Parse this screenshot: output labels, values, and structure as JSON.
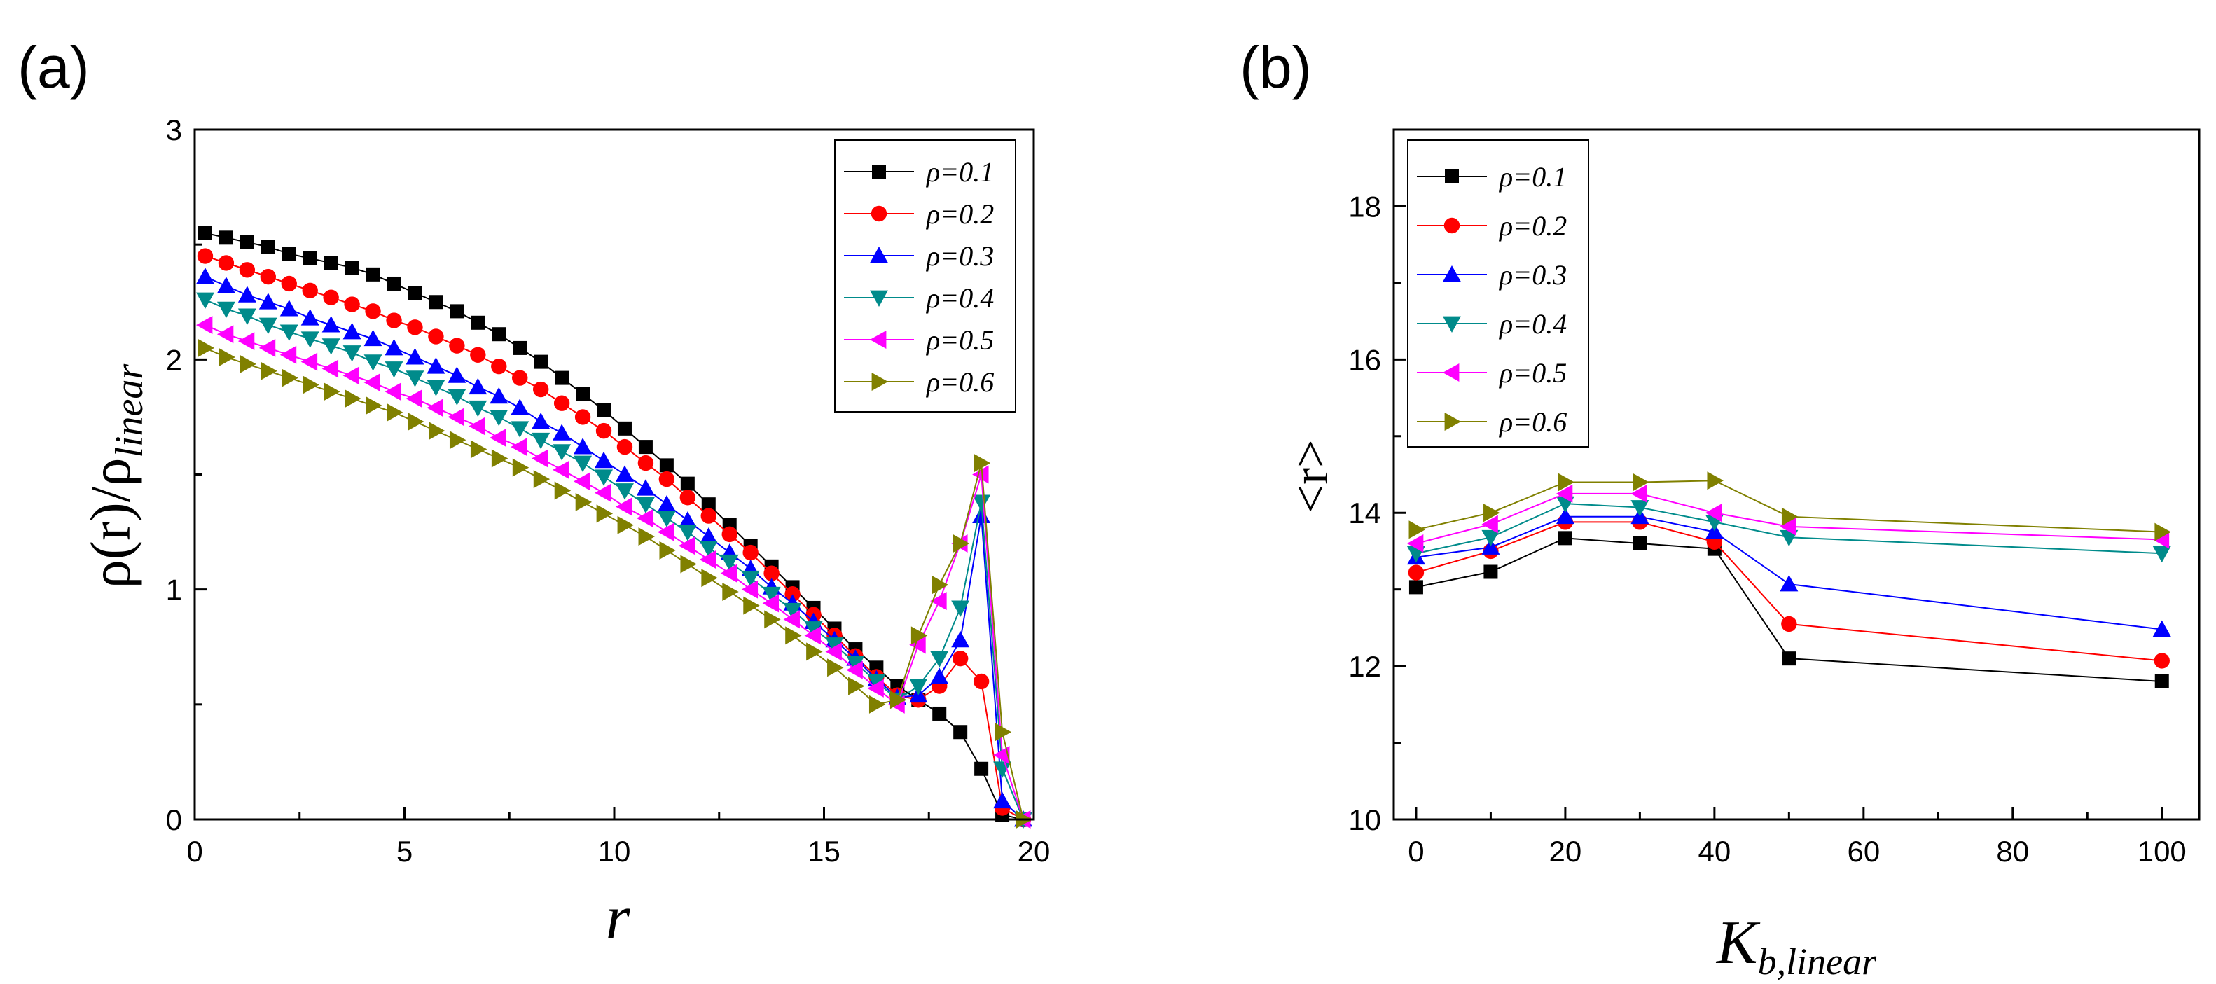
{
  "chart_data": [
    {
      "type": "line",
      "panel_label": "(a)",
      "xlabel": "r",
      "ylabel_main": "ρ(r)/ρ",
      "ylabel_sub": "linear",
      "xlim": [
        0,
        20
      ],
      "ylim": [
        0,
        3
      ],
      "xticks": [
        "0",
        "5",
        "10",
        "15",
        "20"
      ],
      "yticks": [
        "0",
        "1",
        "2",
        "3"
      ],
      "legend_position": "top-right",
      "x": [
        0.25,
        0.75,
        1.25,
        1.75,
        2.25,
        2.75,
        3.25,
        3.75,
        4.25,
        4.75,
        5.25,
        5.75,
        6.25,
        6.75,
        7.25,
        7.75,
        8.25,
        8.75,
        9.25,
        9.75,
        10.25,
        10.75,
        11.25,
        11.75,
        12.25,
        12.75,
        13.25,
        13.75,
        14.25,
        14.75,
        15.25,
        15.75,
        16.25,
        16.75,
        17.25,
        17.75,
        18.25,
        18.75,
        19.25,
        19.75
      ],
      "series": [
        {
          "name": "ρ=0.1",
          "color": "#000000",
          "marker": "square",
          "values": [
            2.55,
            2.53,
            2.51,
            2.49,
            2.46,
            2.44,
            2.42,
            2.4,
            2.37,
            2.33,
            2.29,
            2.25,
            2.21,
            2.16,
            2.11,
            2.05,
            1.99,
            1.92,
            1.85,
            1.78,
            1.7,
            1.62,
            1.54,
            1.46,
            1.37,
            1.28,
            1.19,
            1.1,
            1.01,
            0.92,
            0.83,
            0.74,
            0.66,
            0.58,
            0.52,
            0.46,
            0.38,
            0.22,
            0.02,
            0.0
          ]
        },
        {
          "name": "ρ=0.2",
          "color": "#ff0000",
          "marker": "circle",
          "values": [
            2.45,
            2.42,
            2.39,
            2.36,
            2.33,
            2.3,
            2.27,
            2.24,
            2.21,
            2.17,
            2.14,
            2.1,
            2.06,
            2.02,
            1.97,
            1.92,
            1.87,
            1.81,
            1.75,
            1.69,
            1.62,
            1.55,
            1.48,
            1.4,
            1.32,
            1.24,
            1.16,
            1.07,
            0.98,
            0.89,
            0.8,
            0.71,
            0.62,
            0.54,
            0.52,
            0.58,
            0.7,
            0.6,
            0.05,
            0.0
          ]
        },
        {
          "name": "ρ=0.3",
          "color": "#0000ff",
          "marker": "triangle-up",
          "values": [
            2.36,
            2.32,
            2.28,
            2.25,
            2.22,
            2.18,
            2.15,
            2.12,
            2.09,
            2.05,
            2.01,
            1.97,
            1.93,
            1.88,
            1.84,
            1.79,
            1.73,
            1.68,
            1.62,
            1.56,
            1.5,
            1.44,
            1.37,
            1.3,
            1.23,
            1.16,
            1.09,
            1.01,
            0.94,
            0.86,
            0.78,
            0.7,
            0.61,
            0.53,
            0.54,
            0.62,
            0.78,
            1.32,
            0.08,
            0.0
          ]
        },
        {
          "name": "ρ=0.4",
          "color": "#008b8b",
          "marker": "triangle-down",
          "values": [
            2.26,
            2.22,
            2.19,
            2.15,
            2.12,
            2.09,
            2.06,
            2.03,
            1.99,
            1.96,
            1.92,
            1.88,
            1.84,
            1.79,
            1.75,
            1.7,
            1.65,
            1.6,
            1.55,
            1.49,
            1.43,
            1.37,
            1.31,
            1.25,
            1.18,
            1.12,
            1.05,
            0.98,
            0.91,
            0.83,
            0.76,
            0.68,
            0.6,
            0.52,
            0.58,
            0.7,
            0.92,
            1.38,
            0.22,
            0.0
          ]
        },
        {
          "name": "ρ=0.5",
          "color": "#ff00ff",
          "marker": "triangle-left",
          "values": [
            2.15,
            2.11,
            2.08,
            2.05,
            2.02,
            1.99,
            1.96,
            1.93,
            1.9,
            1.86,
            1.83,
            1.79,
            1.75,
            1.71,
            1.66,
            1.62,
            1.57,
            1.52,
            1.47,
            1.42,
            1.36,
            1.31,
            1.25,
            1.19,
            1.13,
            1.07,
            1.0,
            0.94,
            0.87,
            0.8,
            0.73,
            0.65,
            0.57,
            0.5,
            0.76,
            0.95,
            1.2,
            1.5,
            0.28,
            0.0
          ]
        },
        {
          "name": "ρ=0.6",
          "color": "#808000",
          "marker": "triangle-right",
          "values": [
            2.05,
            2.01,
            1.98,
            1.95,
            1.92,
            1.89,
            1.86,
            1.83,
            1.8,
            1.77,
            1.73,
            1.69,
            1.65,
            1.61,
            1.57,
            1.53,
            1.48,
            1.43,
            1.38,
            1.33,
            1.28,
            1.23,
            1.17,
            1.11,
            1.05,
            0.99,
            0.93,
            0.87,
            0.8,
            0.73,
            0.66,
            0.58,
            0.5,
            0.52,
            0.8,
            1.02,
            1.2,
            1.55,
            0.38,
            0.0
          ]
        }
      ]
    },
    {
      "type": "line",
      "panel_label": "(b)",
      "xlabel_main": "K",
      "xlabel_sub": "b,linear",
      "ylabel": "<r>",
      "xlim": [
        -3,
        105
      ],
      "ylim": [
        10,
        19
      ],
      "xticks": [
        "0",
        "20",
        "40",
        "60",
        "80",
        "100"
      ],
      "yticks": [
        "10",
        "12",
        "14",
        "16",
        "18"
      ],
      "legend_position": "top-left",
      "x": [
        0,
        10,
        20,
        30,
        40,
        50,
        100
      ],
      "series": [
        {
          "name": "ρ=0.1",
          "color": "#000000",
          "marker": "square",
          "values": [
            13.03,
            13.23,
            13.67,
            13.6,
            13.53,
            12.1,
            11.8
          ]
        },
        {
          "name": "ρ=0.2",
          "color": "#ff0000",
          "marker": "circle",
          "values": [
            13.22,
            13.5,
            13.88,
            13.88,
            13.62,
            12.55,
            12.07
          ]
        },
        {
          "name": "ρ=0.3",
          "color": "#0000ff",
          "marker": "triangle-up",
          "values": [
            13.42,
            13.55,
            13.95,
            13.95,
            13.75,
            13.07,
            12.48
          ]
        },
        {
          "name": "ρ=0.4",
          "color": "#008b8b",
          "marker": "triangle-down",
          "values": [
            13.47,
            13.68,
            14.12,
            14.07,
            13.88,
            13.68,
            13.47
          ]
        },
        {
          "name": "ρ=0.5",
          "color": "#ff00ff",
          "marker": "triangle-left",
          "values": [
            13.6,
            13.85,
            14.25,
            14.25,
            14.0,
            13.82,
            13.65
          ]
        },
        {
          "name": "ρ=0.6",
          "color": "#808000",
          "marker": "triangle-right",
          "values": [
            13.78,
            14.0,
            14.4,
            14.4,
            14.42,
            13.95,
            13.75
          ]
        }
      ]
    }
  ]
}
